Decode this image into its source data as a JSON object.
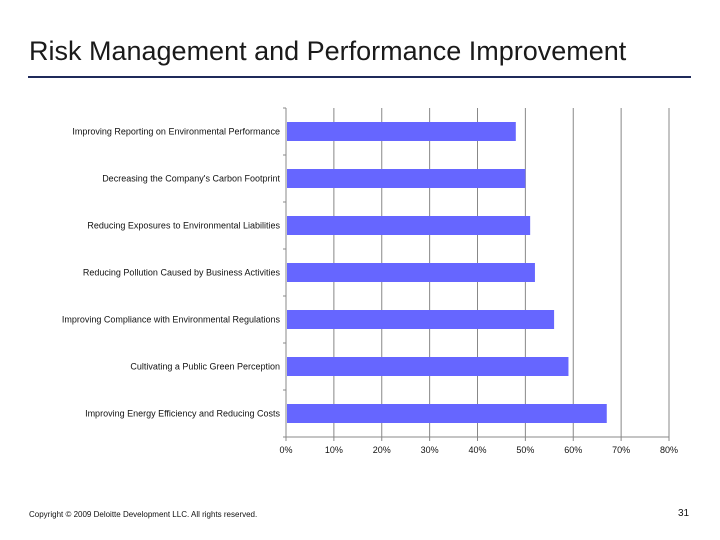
{
  "slide": {
    "title": "Risk Management and Performance Improvement",
    "footer": "Copyright © 2009 Deloitte Development LLC. All rights reserved.",
    "page_number": "31"
  },
  "chart_data": {
    "type": "bar",
    "orientation": "horizontal",
    "title": "",
    "xlabel": "",
    "ylabel": "",
    "categories": [
      "Improving Reporting on Environmental Performance",
      "Decreasing the Company's Carbon Footprint",
      "Reducing Exposures to Environmental Liabilities",
      "Reducing Pollution Caused by Business Activities",
      "Improving Compliance with Environmental Regulations",
      "Cultivating a Public Green Perception",
      "Improving Energy Efficiency and Reducing Costs"
    ],
    "values": [
      48,
      50,
      51,
      52,
      56,
      59,
      67
    ],
    "xlim": [
      0,
      80
    ],
    "x_ticks": [
      "0%",
      "10%",
      "20%",
      "30%",
      "40%",
      "50%",
      "60%",
      "70%",
      "80%"
    ],
    "grid": "vertical",
    "legend": "none",
    "bar_color": "#6666ff",
    "grid_color": "#888888"
  }
}
